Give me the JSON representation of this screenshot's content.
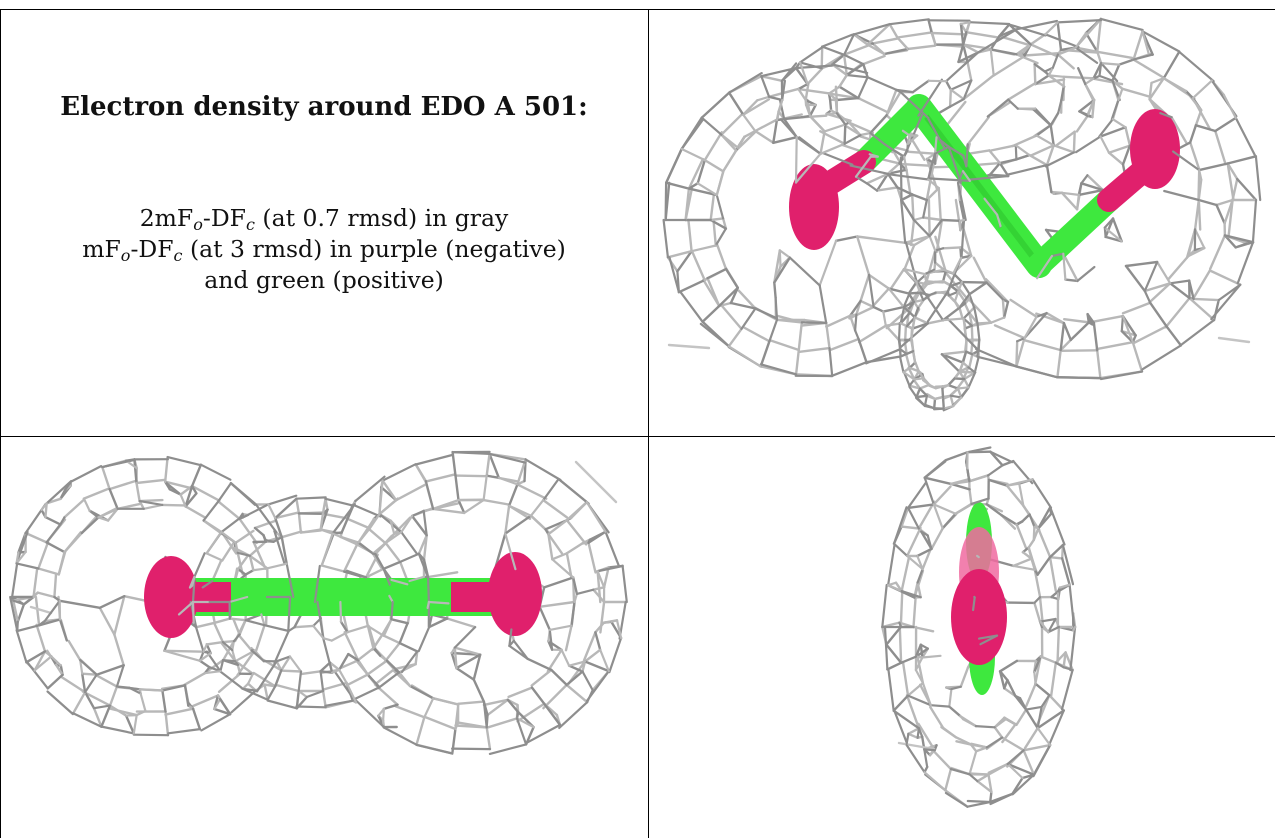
{
  "caption": {
    "title": "Electron density around EDO A 501:",
    "line1": {
      "a": "2mF",
      "sub_o": "o",
      "b": "-DF",
      "sub_c": "c",
      "tail": " (at 0.7 rmsd) in gray"
    },
    "line2": {
      "a": "mF",
      "sub_o": "o",
      "b": "-DF",
      "sub_c": "c",
      "tail": " (at 3 rmsd) in purple (negative)"
    },
    "line3": "and green (positive)"
  },
  "colors": {
    "mesh": "#b8b8b8",
    "mesh_dark": "#8e8e8e",
    "oxygen": "#e0206c",
    "carbon": "#3ee83e",
    "border": "#000000"
  },
  "views": [
    {
      "name": "view-top-right",
      "molecule": "ethylene-glycol-zigzag"
    },
    {
      "name": "view-bottom-left",
      "molecule": "ethylene-glycol-side"
    },
    {
      "name": "view-bottom-right",
      "molecule": "ethylene-glycol-end-on"
    }
  ]
}
